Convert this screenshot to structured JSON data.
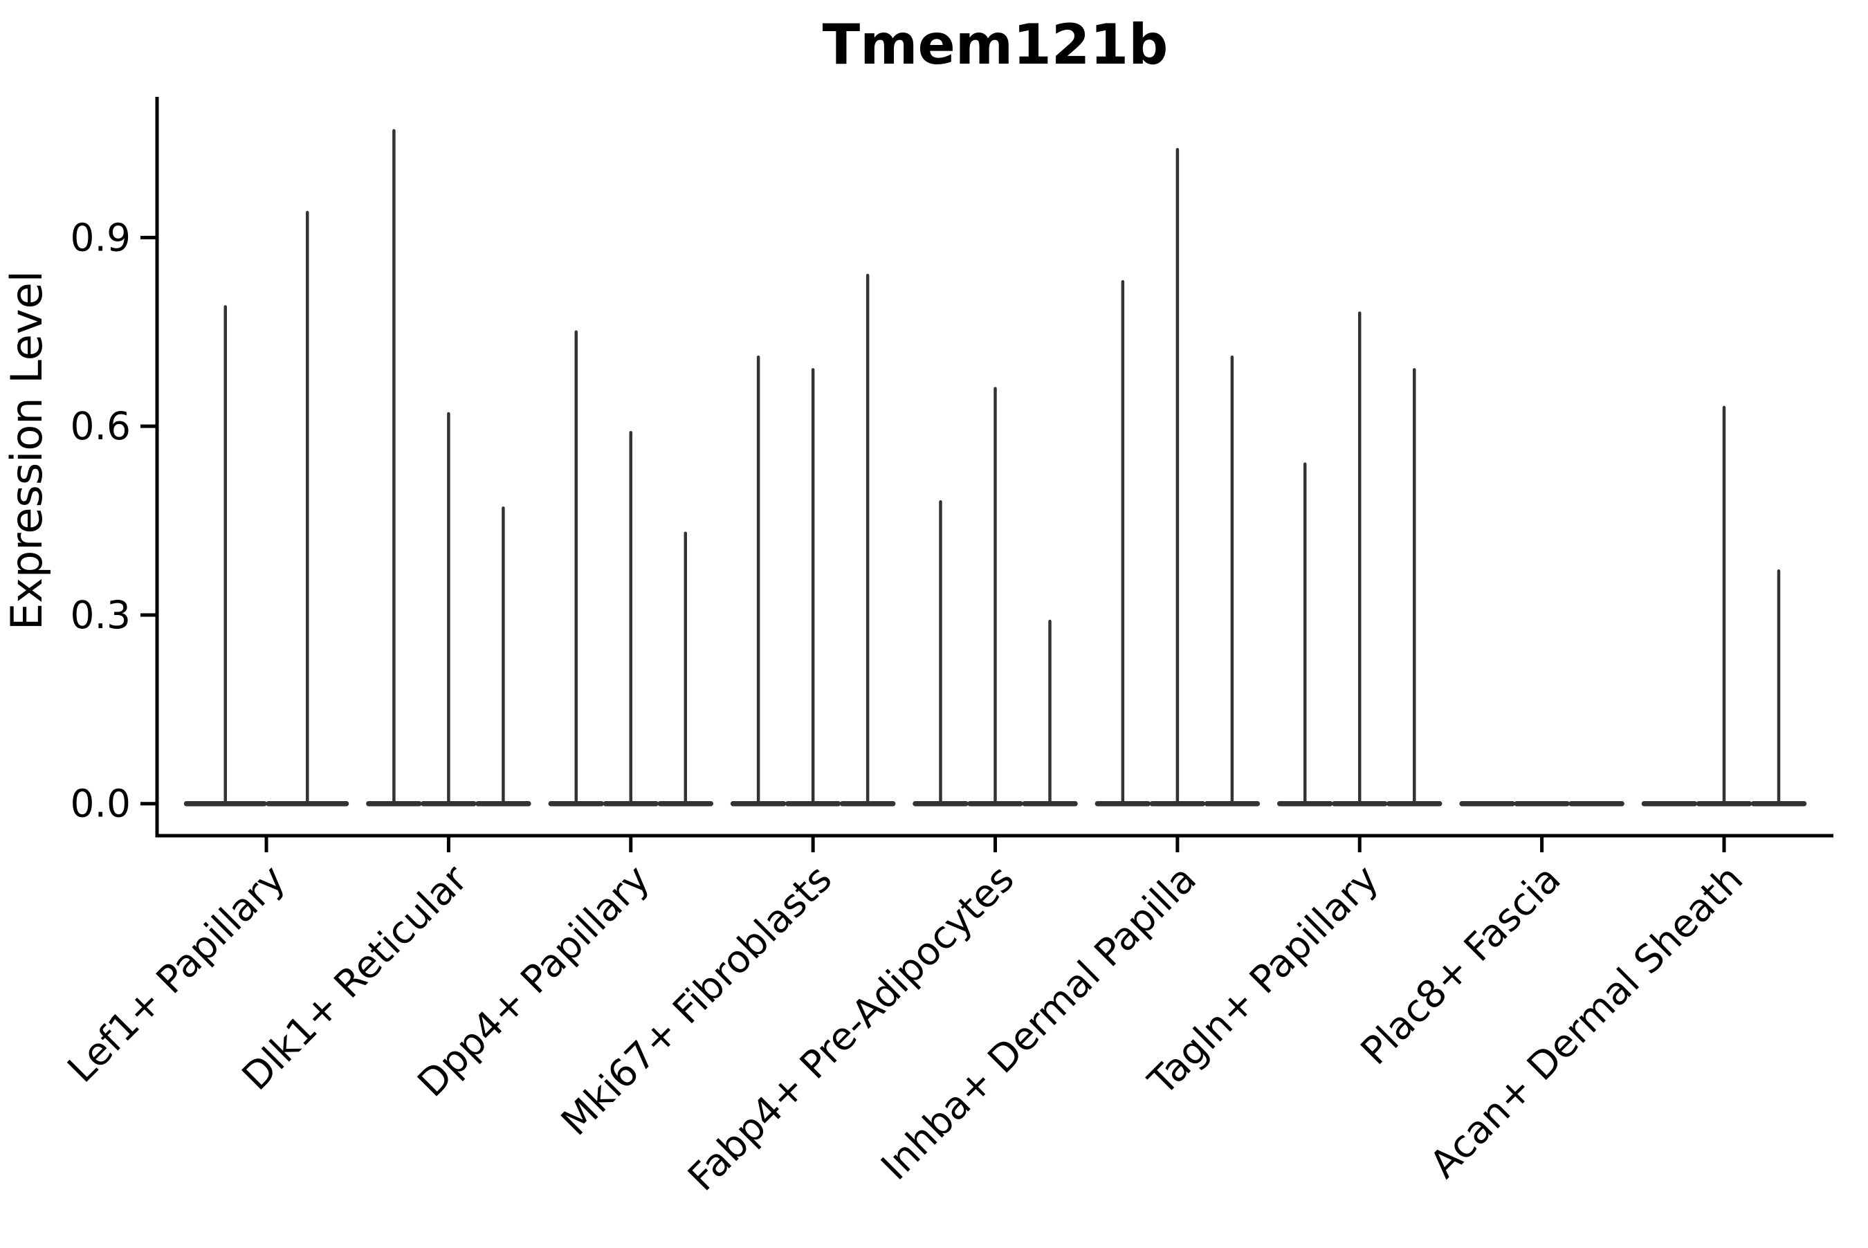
{
  "figure": {
    "background": "#ffffff"
  },
  "chart_data": {
    "type": "violin",
    "title": "Tmem121b",
    "xlabel": "",
    "ylabel": "Expression Level",
    "yticks": [
      0.0,
      0.3,
      0.6,
      0.9
    ],
    "yticklabels": [
      "0.0",
      "0.3",
      "0.6",
      "0.9"
    ],
    "ylim": [
      0,
      1.12
    ],
    "grid": false,
    "legend": "none",
    "violin_color": "#333333",
    "axis_color": "#000000",
    "categories": [
      "Lef1+ Papillary",
      "Dlk1+ Reticular",
      "Dpp4+ Papillary",
      "Mki67+ Fibroblasts",
      "Fabp4+ Pre-Adipocytes",
      "Inhba+ Dermal Papilla",
      "Tagln+ Papillary",
      "Plac8+ Fascia",
      "Acan+ Dermal Sheath"
    ],
    "violin_maxima": [
      [
        0.79,
        0.94
      ],
      [
        1.07,
        0.62,
        0.47
      ],
      [
        0.75,
        0.59,
        0.43
      ],
      [
        0.71,
        0.69,
        0.84
      ],
      [
        0.48,
        0.66,
        0.29
      ],
      [
        0.83,
        1.04,
        0.71
      ],
      [
        0.54,
        0.78,
        0.69
      ],
      [
        0.0,
        0.0,
        0.0
      ],
      [
        0.0,
        0.63,
        0.37
      ]
    ]
  }
}
